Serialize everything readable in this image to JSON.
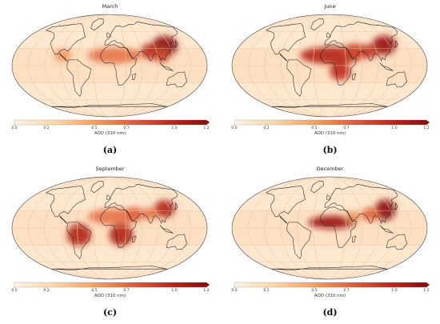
{
  "panels": [
    {
      "id": "a",
      "title": "March",
      "label": "(a)"
    },
    {
      "id": "b",
      "title": "June",
      "label": "(b)"
    },
    {
      "id": "c",
      "title": "September",
      "label": "(c)"
    },
    {
      "id": "d",
      "title": "December",
      "label": "(d)"
    }
  ],
  "colorbar": {
    "label": "AOD (310 nm)",
    "ticks": [
      "0.0",
      "0.2",
      "0.5",
      "0.7",
      "1.0",
      "1.2"
    ],
    "colors": [
      "#fdf3e4",
      "#fbd9ab",
      "#f4a46b",
      "#e0643f",
      "#c02a1f",
      "#8b0b0b"
    ]
  },
  "colors": {
    "ocean": "#fde7cf",
    "land_line": "#222222",
    "grid": "#e8c8a5"
  },
  "hotspots": {
    "a": [
      {
        "name": "east-asia",
        "lon": 112,
        "lat": 34,
        "rx": 16,
        "ry": 13,
        "level": 1.0
      },
      {
        "name": "india",
        "lon": 80,
        "lat": 25,
        "rx": 12,
        "ry": 10,
        "level": 0.8
      },
      {
        "name": "sahara",
        "lon": 10,
        "lat": 18,
        "rx": 34,
        "ry": 10,
        "level": 0.55
      },
      {
        "name": "central-america",
        "lon": -90,
        "lat": 18,
        "rx": 11,
        "ry": 8,
        "level": 0.45
      },
      {
        "name": "southeast-asia",
        "lon": 100,
        "lat": 18,
        "rx": 11,
        "ry": 9,
        "level": 0.7
      }
    ],
    "b": [
      {
        "name": "sahara",
        "lon": 5,
        "lat": 18,
        "rx": 40,
        "ry": 11,
        "level": 0.85
      },
      {
        "name": "arabia",
        "lon": 50,
        "lat": 25,
        "rx": 16,
        "ry": 10,
        "level": 0.7
      },
      {
        "name": "east-asia",
        "lon": 112,
        "lat": 36,
        "rx": 15,
        "ry": 12,
        "level": 0.95
      },
      {
        "name": "india",
        "lon": 78,
        "lat": 25,
        "rx": 12,
        "ry": 9,
        "level": 0.75
      },
      {
        "name": "central-africa",
        "lon": 20,
        "lat": -10,
        "rx": 13,
        "ry": 11,
        "level": 0.8
      }
    ],
    "c": [
      {
        "name": "south-america",
        "lon": -58,
        "lat": -12,
        "rx": 15,
        "ry": 14,
        "level": 0.85
      },
      {
        "name": "southern-africa",
        "lon": 22,
        "lat": -12,
        "rx": 15,
        "ry": 14,
        "level": 0.85
      },
      {
        "name": "sahara",
        "lon": 10,
        "lat": 20,
        "rx": 34,
        "ry": 10,
        "level": 0.55
      },
      {
        "name": "arabia",
        "lon": 48,
        "lat": 24,
        "rx": 13,
        "ry": 9,
        "level": 0.6
      },
      {
        "name": "east-asia",
        "lon": 112,
        "lat": 34,
        "rx": 13,
        "ry": 11,
        "level": 0.85
      },
      {
        "name": "india",
        "lon": 80,
        "lat": 25,
        "rx": 10,
        "ry": 8,
        "level": 0.55
      }
    ],
    "d": [
      {
        "name": "east-asia",
        "lon": 112,
        "lat": 32,
        "rx": 13,
        "ry": 13,
        "level": 1.0
      },
      {
        "name": "sahel",
        "lon": 5,
        "lat": 10,
        "rx": 30,
        "ry": 8,
        "level": 0.95
      },
      {
        "name": "india",
        "lon": 80,
        "lat": 24,
        "rx": 11,
        "ry": 9,
        "level": 0.6
      },
      {
        "name": "arabia",
        "lon": 45,
        "lat": 20,
        "rx": 10,
        "ry": 7,
        "level": 0.45
      }
    ]
  }
}
